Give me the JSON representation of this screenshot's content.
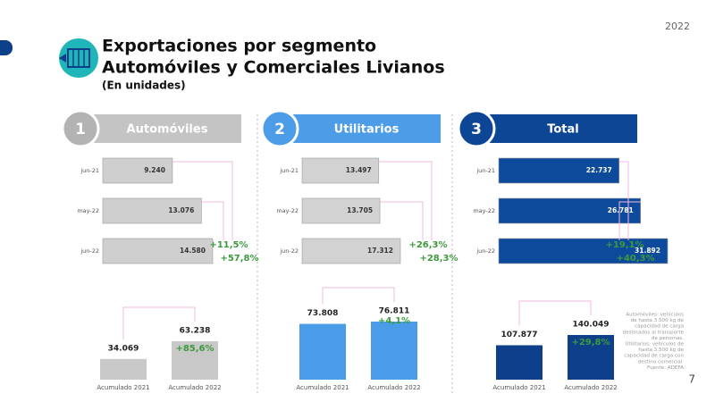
{
  "year": "2022",
  "title": "Exportaciones por segmento",
  "subtitle": "Automóviles y Comerciales Livianos",
  "unit_note": "(En unidades)",
  "page_number": "7",
  "footnote": [
    "Automóviles: vehículos",
    "de hasta 3.500 kg de",
    "capacidad de carga",
    "destinados al transporte",
    "de personas.",
    "Utilitarios: vehículos de",
    "hasta 3.500 kg de",
    "capacidad de carga con",
    "destino comercial.",
    "Fuente: ADEFA"
  ],
  "chart_data": [
    {
      "type": "bar",
      "orientation": "horizontal",
      "number": "1",
      "title": "Automóviles",
      "header_color": "#c4c4c4",
      "badge_color": "#b3b3b3",
      "categories": [
        "jun-21",
        "may-22",
        "jun-22"
      ],
      "values": [
        9240,
        13076,
        14580
      ],
      "value_labels": [
        "9.240",
        "13.076",
        "14.580"
      ],
      "color": "#cfcfcf",
      "label_color": "#333333",
      "annotations": [
        "+11,5%",
        "+57,8%"
      ]
    },
    {
      "type": "bar",
      "orientation": "vertical",
      "categories": [
        "Acumulado 2021",
        "Acumulado 2022"
      ],
      "values": [
        34069,
        63238
      ],
      "value_labels": [
        "34.069",
        "63.238"
      ],
      "color": "#c8c8c8",
      "annotations": [
        "+85,6%"
      ]
    },
    {
      "type": "bar",
      "orientation": "horizontal",
      "number": "2",
      "title": "Utilitarios",
      "header_color": "#4d9ce8",
      "badge_color": "#4d9ce8",
      "categories": [
        "jun-21",
        "may-22",
        "jun-22"
      ],
      "values": [
        13497,
        13705,
        17312
      ],
      "value_labels": [
        "13.497",
        "13.705",
        "17.312"
      ],
      "color": "#d2d2d2",
      "label_color": "#333333",
      "annotations": [
        "+26,3%",
        "+28,3%"
      ]
    },
    {
      "type": "bar",
      "orientation": "vertical",
      "categories": [
        "Acumulado 2021",
        "Acumulado 2022"
      ],
      "values": [
        73808,
        76811
      ],
      "value_labels": [
        "73.808",
        "76.811"
      ],
      "color": "#4a9be8",
      "annotations": [
        "+4,1%"
      ]
    },
    {
      "type": "bar",
      "orientation": "horizontal",
      "number": "3",
      "title": "Total",
      "header_color": "#0d4694",
      "badge_color": "#0d4694",
      "categories": [
        "jun-21",
        "may-22",
        "jun-22"
      ],
      "values": [
        22737,
        26781,
        31892
      ],
      "value_labels": [
        "22.737",
        "26.781",
        "31.892"
      ],
      "color": "#0d4a9c",
      "label_color": "#ffffff",
      "annotations": [
        "+19,1%",
        "+40,3%"
      ]
    },
    {
      "type": "bar",
      "orientation": "vertical",
      "categories": [
        "Acumulado 2021",
        "Acumulado 2022"
      ],
      "values": [
        107877,
        140049
      ],
      "value_labels": [
        "107.877",
        "140.049"
      ],
      "color": "#0d3f8a",
      "annotations": [
        "+29,8%"
      ]
    }
  ]
}
